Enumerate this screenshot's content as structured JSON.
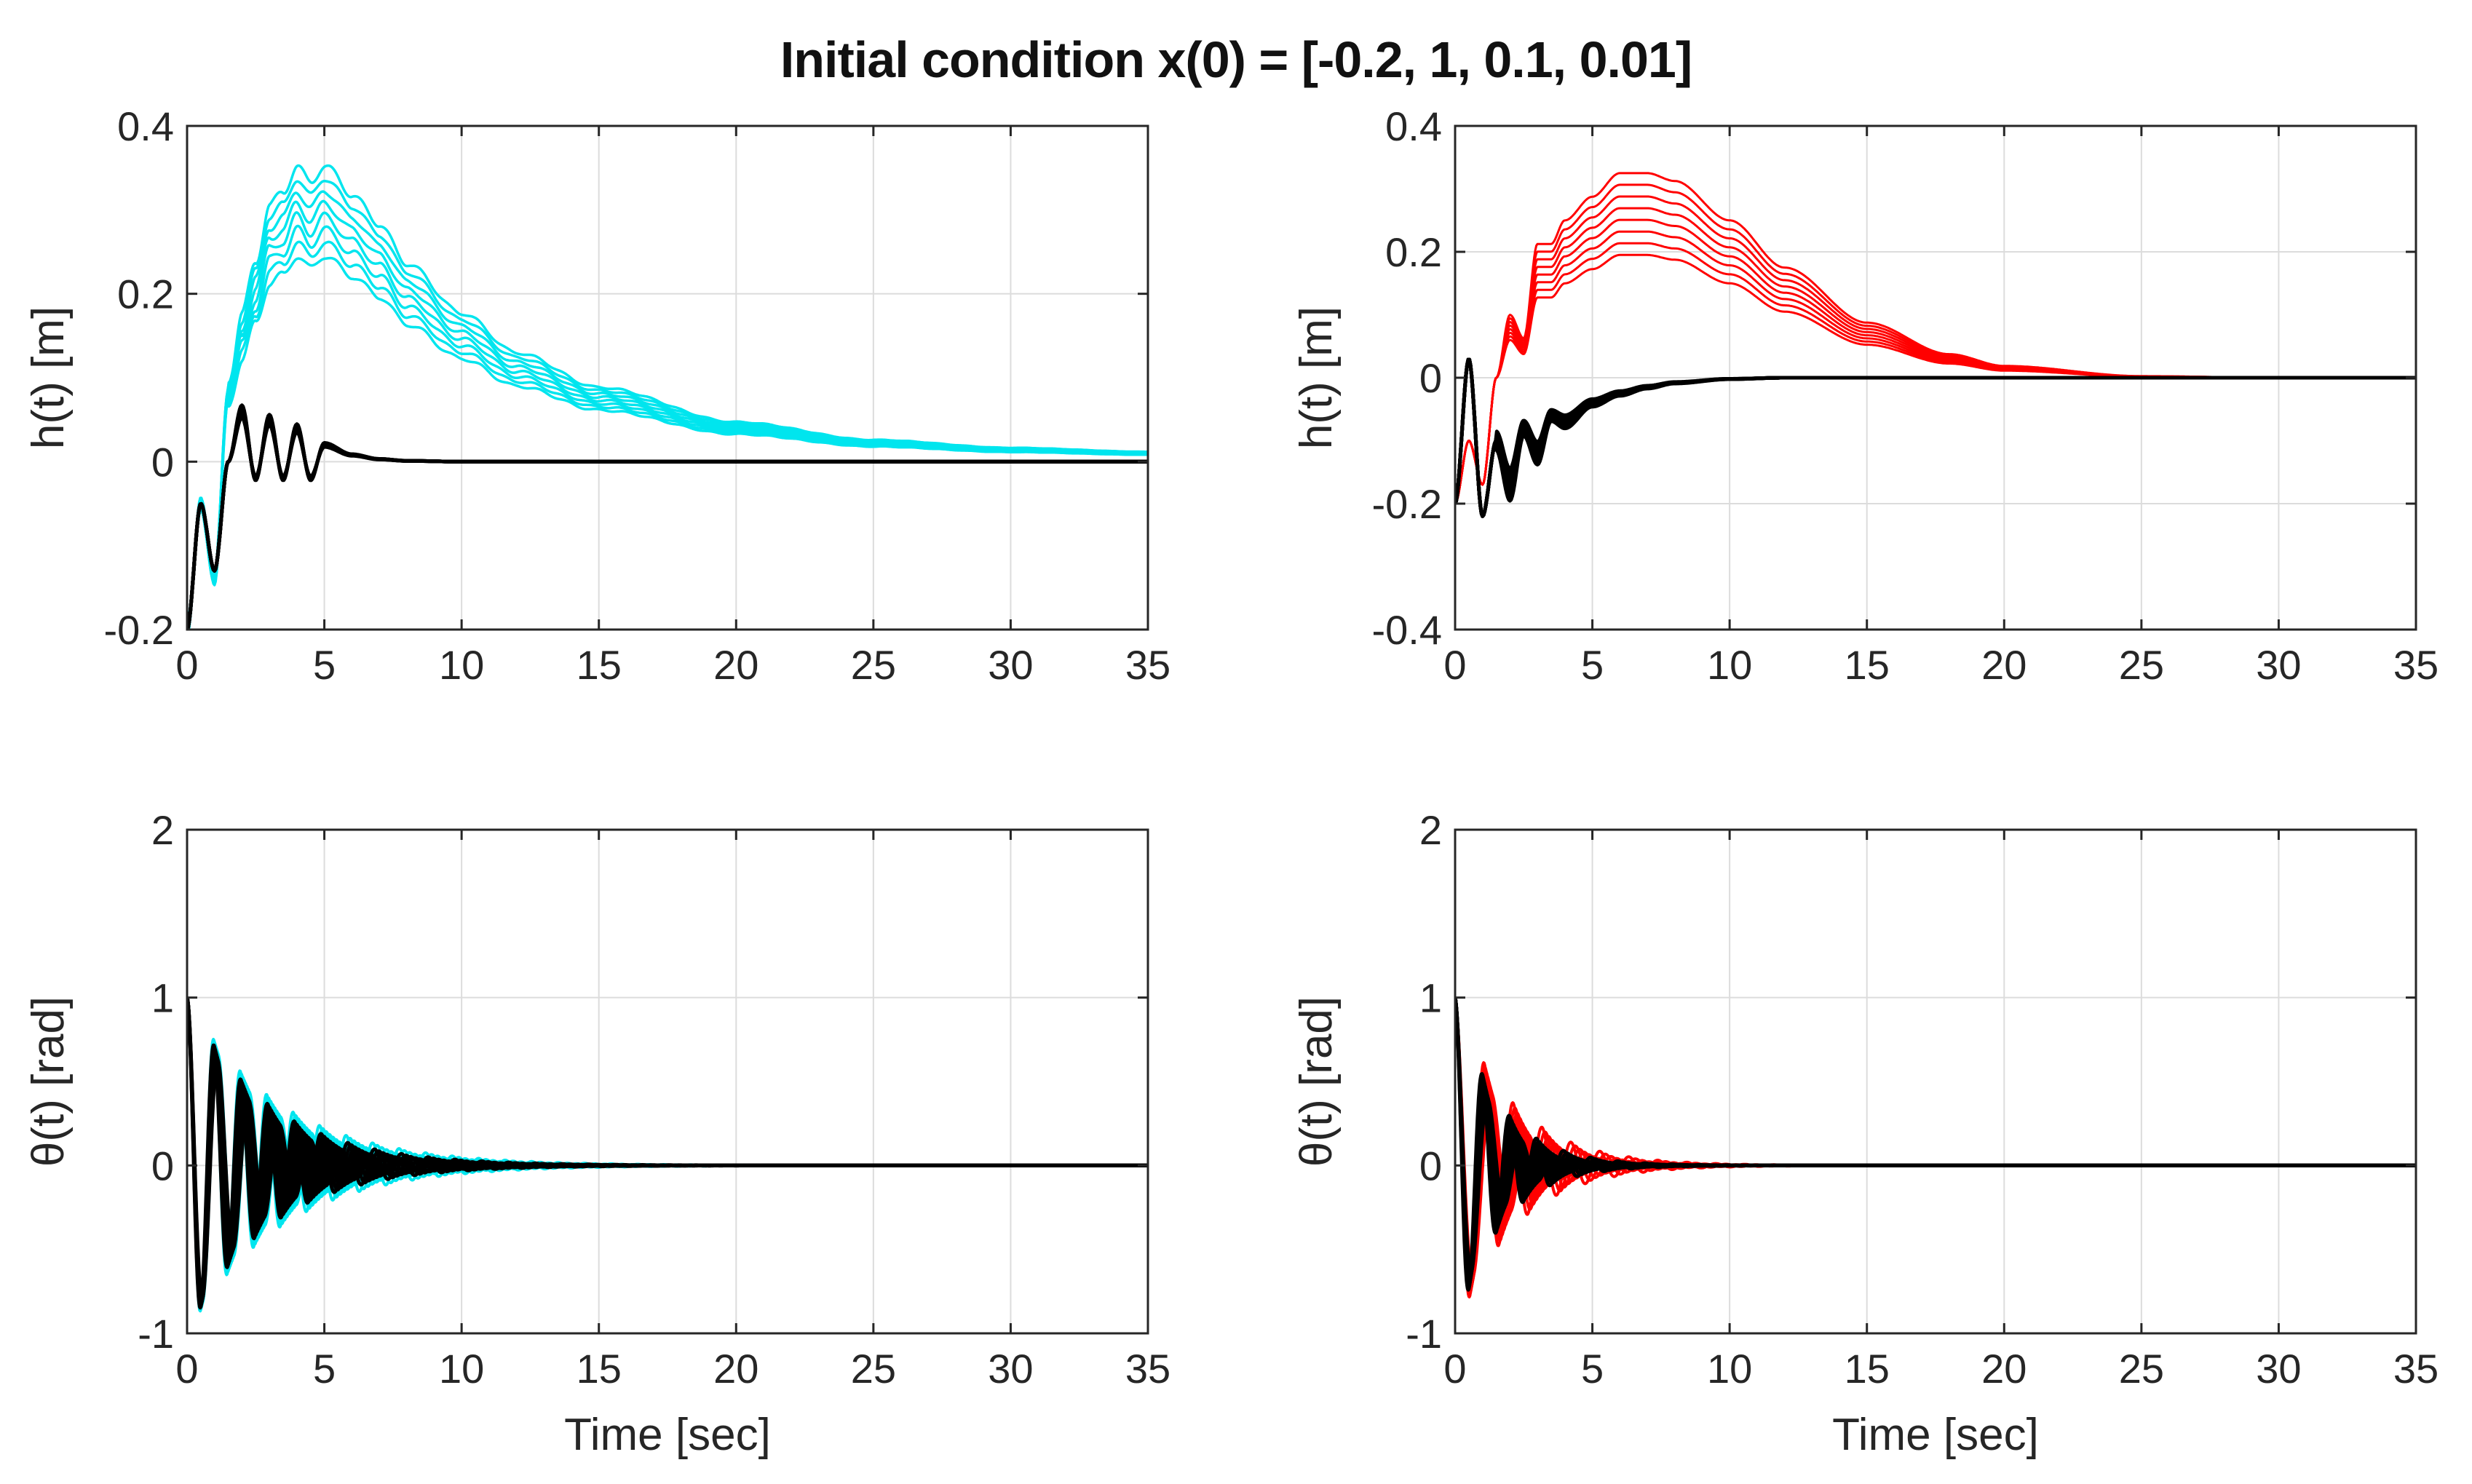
{
  "figure": {
    "title": "Initial condition x(0) = [-0.2, 1, 0.1, 0.01]"
  },
  "colors": {
    "cyan": "#00e5ee",
    "red": "#ff0000",
    "black": "#000000",
    "grid": "#dcdcdc",
    "axis": "#262626"
  },
  "chart_data": [
    {
      "id": "top-left",
      "type": "line",
      "title": "",
      "xlabel": "",
      "ylabel": "h(t) [m]",
      "xlim": [
        0,
        35
      ],
      "ylim": [
        -0.2,
        0.4
      ],
      "xticks": [
        0,
        5,
        10,
        15,
        20,
        25,
        30,
        35
      ],
      "xtick_labels": [
        "0",
        "5",
        "10",
        "15",
        "20",
        "25",
        "30",
        "35"
      ],
      "yticks": [
        -0.2,
        0,
        0.2,
        0.4
      ],
      "ytick_labels": [
        "-0.2",
        "0",
        "0.2",
        "0.4"
      ],
      "grid": true,
      "series": [
        {
          "name": "colored ensemble",
          "color": "cyan",
          "count": 8,
          "width": 3.5,
          "x": [
            0,
            0.5,
            1,
            1.5,
            2,
            2.5,
            3,
            3.5,
            4,
            4.5,
            5,
            6,
            7,
            8,
            10,
            12,
            15,
            20,
            25,
            30,
            35
          ],
          "y": [
            -0.2,
            -0.05,
            -0.14,
            0.08,
            0.15,
            0.2,
            0.26,
            0.27,
            0.3,
            0.28,
            0.3,
            0.27,
            0.24,
            0.2,
            0.15,
            0.11,
            0.075,
            0.04,
            0.022,
            0.014,
            0.01
          ],
          "spread": 0.18,
          "wiggle": 0.008
        },
        {
          "name": "black ensemble",
          "color": "black",
          "count": 8,
          "width": 5,
          "x": [
            0,
            0.5,
            1,
            1.5,
            2,
            2.5,
            3,
            3.5,
            4,
            4.5,
            5,
            6,
            7,
            8,
            10,
            12,
            15,
            20,
            35
          ],
          "y": [
            -0.2,
            -0.05,
            -0.13,
            0.0,
            0.06,
            -0.02,
            0.05,
            -0.02,
            0.04,
            -0.02,
            0.02,
            0.008,
            0.003,
            0.001,
            0.0,
            0.0,
            0.0,
            0.0,
            0.0
          ],
          "spread": 0.12,
          "wiggle": 0.0
        }
      ]
    },
    {
      "id": "top-right",
      "type": "line",
      "title": "",
      "xlabel": "",
      "ylabel": "h(t) [m]",
      "xlim": [
        0,
        35
      ],
      "ylim": [
        -0.4,
        0.4
      ],
      "xticks": [
        0,
        5,
        10,
        15,
        20,
        25,
        30,
        35
      ],
      "xtick_labels": [
        "0",
        "5",
        "10",
        "15",
        "20",
        "25",
        "30",
        "35"
      ],
      "yticks": [
        -0.4,
        -0.2,
        0,
        0.2,
        0.4
      ],
      "ytick_labels": [
        "-0.4",
        "-0.2",
        "0",
        "0.2",
        "0.4"
      ],
      "grid": true,
      "series": [
        {
          "name": "colored ensemble",
          "color": "red",
          "count": 8,
          "width": 3,
          "x": [
            0,
            0.5,
            1,
            1.5,
            2,
            2.5,
            3,
            3.5,
            4,
            5,
            6,
            7,
            8,
            10,
            12,
            15,
            18,
            20,
            25,
            30,
            35
          ],
          "y": [
            -0.2,
            -0.1,
            -0.17,
            0.0,
            0.08,
            0.05,
            0.17,
            0.17,
            0.2,
            0.23,
            0.26,
            0.26,
            0.25,
            0.2,
            0.14,
            0.07,
            0.03,
            0.015,
            0.002,
            0.0,
            0.0
          ],
          "spread": 0.25,
          "wiggle": 0.0
        },
        {
          "name": "black ensemble",
          "color": "black",
          "count": 8,
          "width": 5,
          "x": [
            0,
            0.5,
            1,
            1.5,
            2,
            2.5,
            3,
            3.5,
            4,
            5,
            6,
            7,
            8,
            10,
            12,
            15,
            35
          ],
          "y": [
            -0.2,
            0.03,
            -0.22,
            -0.1,
            -0.17,
            -0.08,
            -0.12,
            -0.06,
            -0.07,
            -0.04,
            -0.025,
            -0.015,
            -0.008,
            -0.002,
            0.0,
            0.0,
            0.0
          ],
          "spread": 0.15,
          "wiggle": 0.0
        }
      ]
    },
    {
      "id": "bottom-left",
      "type": "line",
      "title": "",
      "xlabel": "Time [sec]",
      "ylabel": "θ(t) [rad]",
      "xlim": [
        0,
        35
      ],
      "ylim": [
        -1,
        2
      ],
      "xticks": [
        0,
        5,
        10,
        15,
        20,
        25,
        30,
        35
      ],
      "xtick_labels": [
        "0",
        "5",
        "10",
        "15",
        "20",
        "25",
        "30",
        "35"
      ],
      "yticks": [
        -1,
        0,
        1,
        2
      ],
      "ytick_labels": [
        "-1",
        "0",
        "1",
        "2"
      ],
      "grid": true,
      "series": [
        {
          "name": "colored ensemble",
          "color": "cyan",
          "count": 8,
          "width": 4,
          "oscillation": {
            "y0": 1.0,
            "amp": 1.0,
            "period": 1.05,
            "decay": 0.33,
            "sign": 1,
            "periodSpread": 0.08
          },
          "spread": 0.1
        },
        {
          "name": "black ensemble",
          "color": "black",
          "count": 8,
          "width": 5,
          "oscillation": {
            "y0": 1.0,
            "amp": 0.95,
            "period": 1.05,
            "decay": 0.38,
            "sign": 1,
            "periodSpread": 0.07
          },
          "spread": 0.1
        }
      ]
    },
    {
      "id": "bottom-right",
      "type": "line",
      "title": "",
      "xlabel": "Time [sec]",
      "ylabel": "θ(t) [rad]",
      "xlim": [
        0,
        35
      ],
      "ylim": [
        -1,
        2
      ],
      "xticks": [
        0,
        5,
        10,
        15,
        20,
        25,
        30,
        35
      ],
      "xtick_labels": [
        "0",
        "5",
        "10",
        "15",
        "20",
        "25",
        "30",
        "35"
      ],
      "yticks": [
        -1,
        0,
        1,
        2
      ],
      "ytick_labels": [
        "-1",
        "0",
        "1",
        "2"
      ],
      "grid": true,
      "series": [
        {
          "name": "colored ensemble",
          "color": "red",
          "count": 8,
          "width": 4,
          "oscillation": {
            "y0": 1.0,
            "amp": 0.85,
            "period": 1.2,
            "decay": 0.55,
            "sign": 1,
            "periodSpread": 0.12
          },
          "spread": 0.15
        },
        {
          "name": "black ensemble",
          "color": "black",
          "count": 8,
          "width": 5,
          "oscillation": {
            "y0": 1.0,
            "amp": 0.75,
            "period": 1.1,
            "decay": 0.7,
            "sign": 1,
            "periodSpread": 0.1
          },
          "spread": 0.12
        }
      ]
    }
  ]
}
